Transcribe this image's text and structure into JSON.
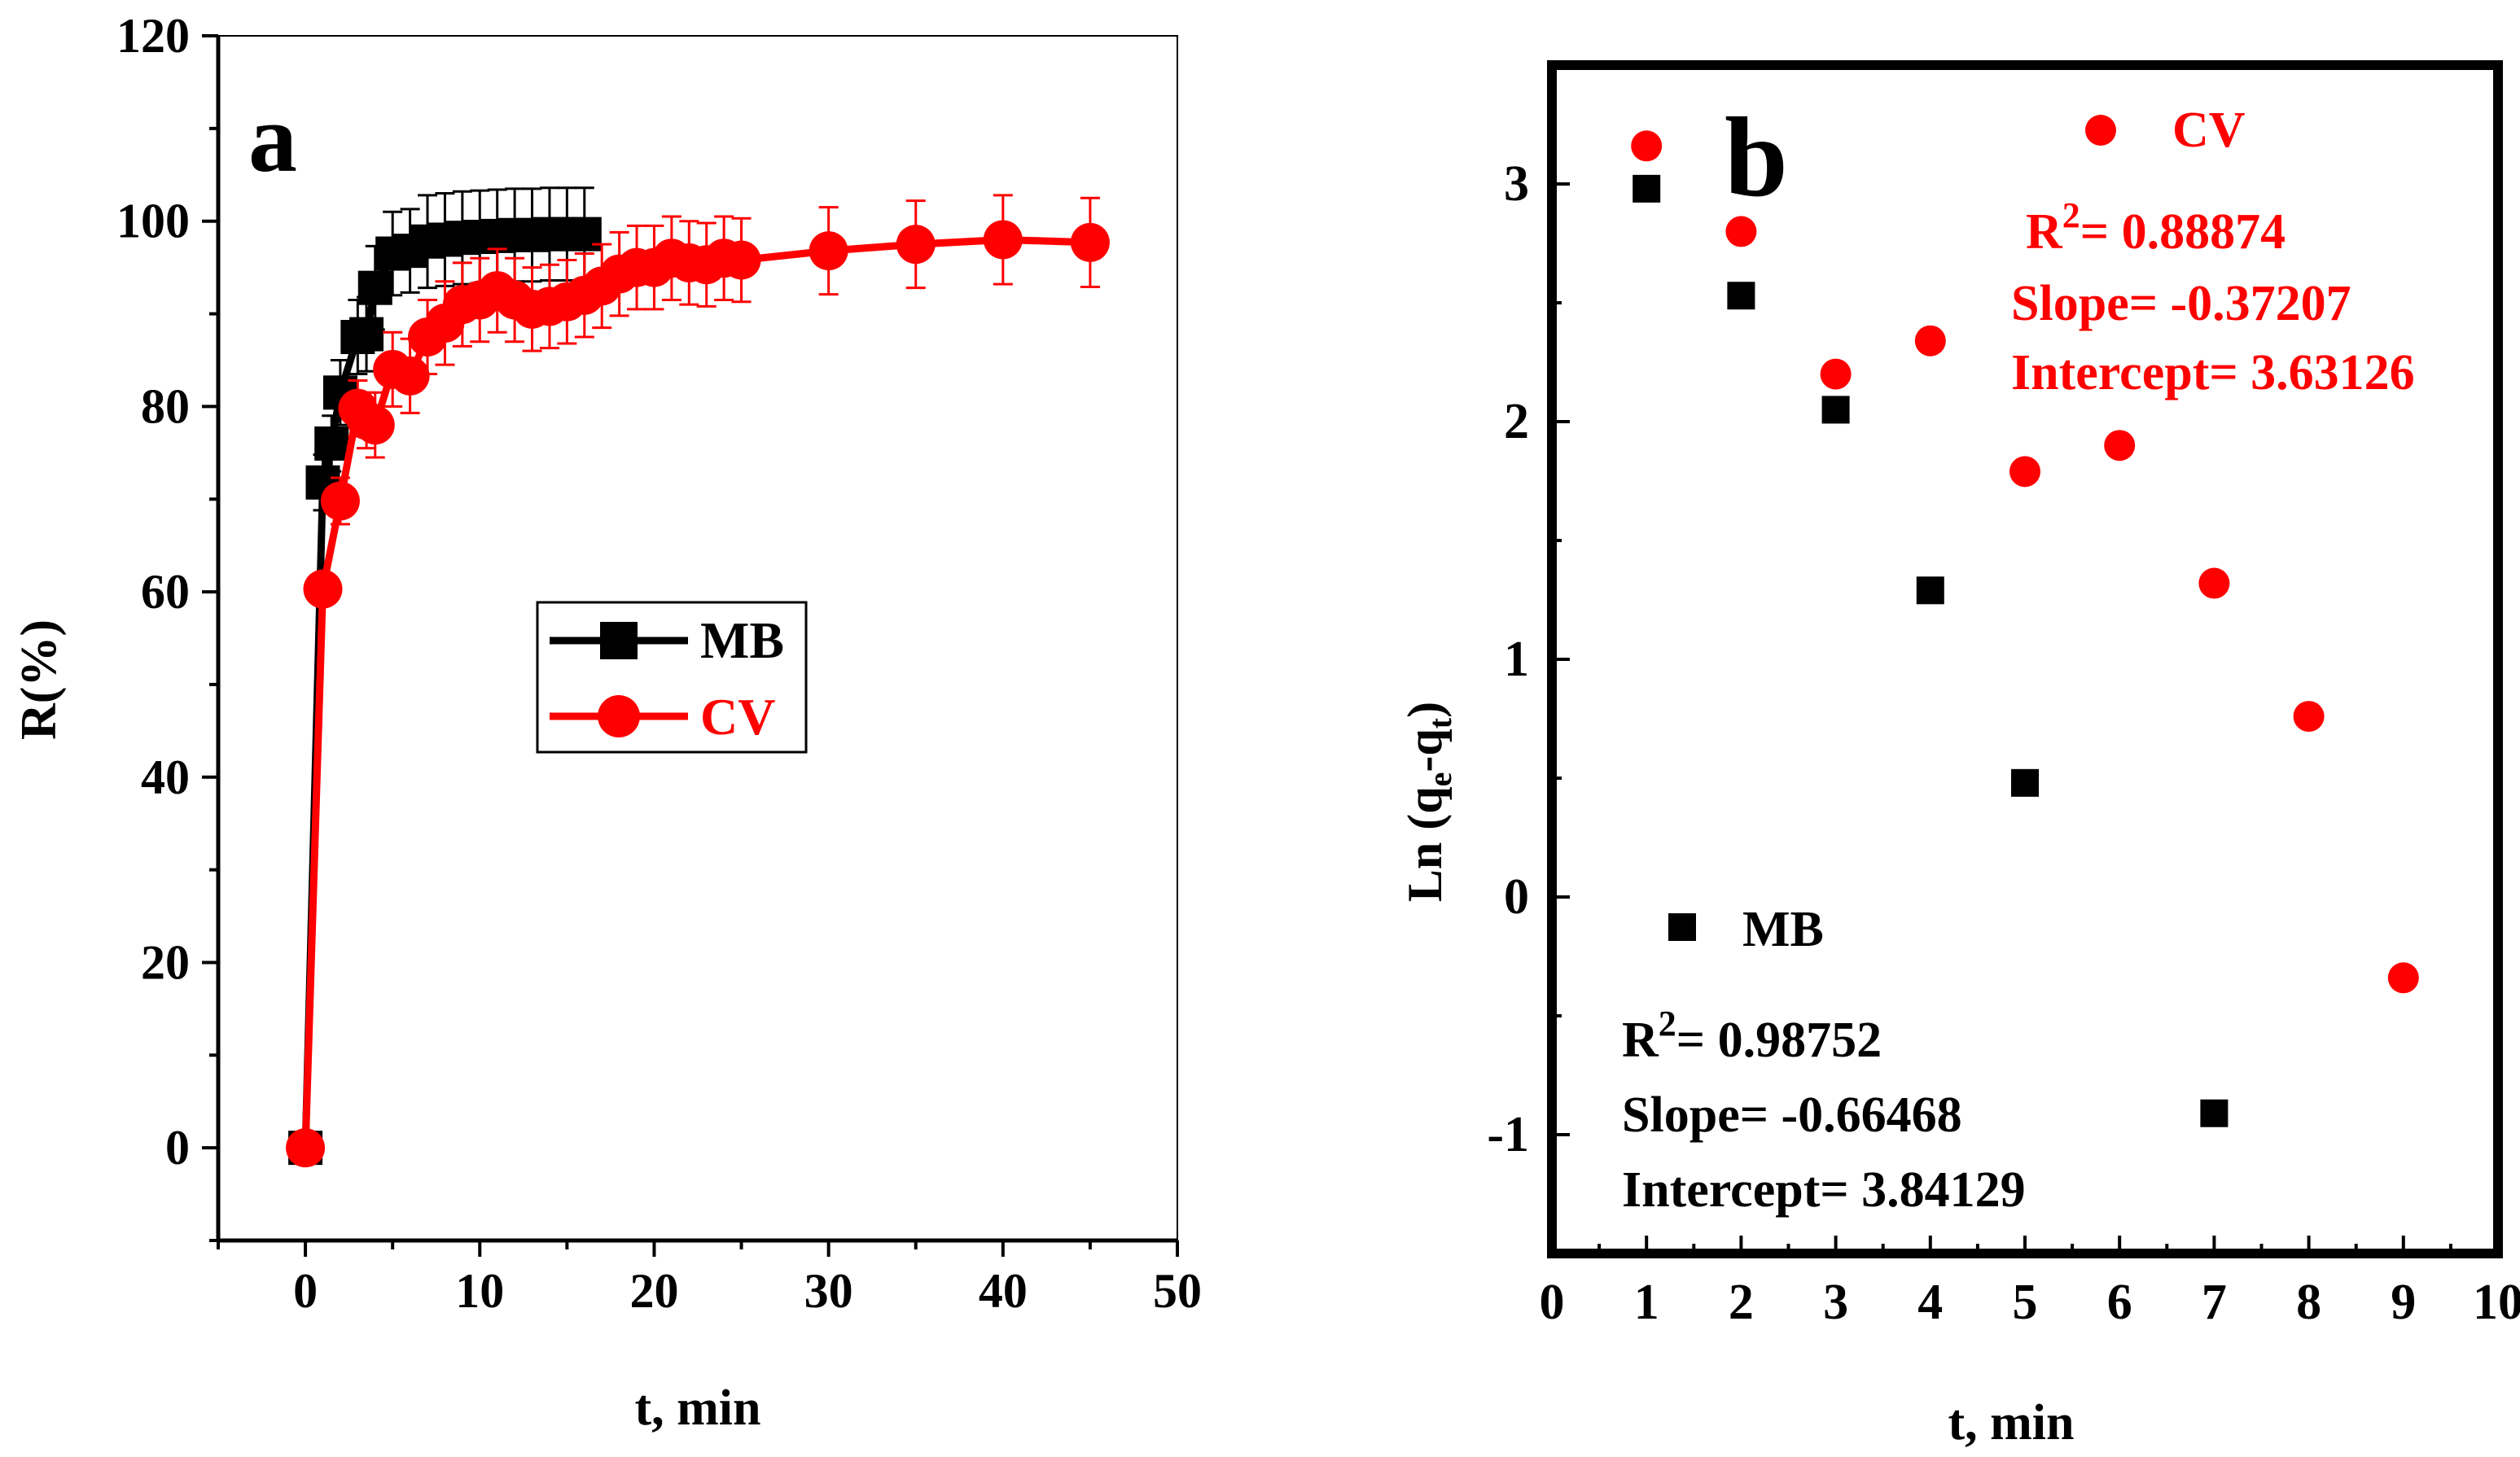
{
  "chart_data": [
    {
      "type": "line",
      "panel_label": "a",
      "xlabel": "t, min",
      "ylabel": "R(%)",
      "xlim": [
        -5,
        50
      ],
      "ylim": [
        -10,
        120
      ],
      "x_ticks": [
        "0",
        "10",
        "20",
        "30",
        "40",
        "50"
      ],
      "y_ticks": [
        "0",
        "20",
        "40",
        "60",
        "80",
        "100",
        "120"
      ],
      "legend_position": "center",
      "series": [
        {
          "name": "MB",
          "color": "#000000",
          "marker": "square",
          "x": [
            0,
            1,
            1.5,
            2,
            3,
            3.5,
            4,
            5,
            6,
            7,
            8,
            9,
            10,
            11,
            12,
            13,
            14,
            15,
            16
          ],
          "y": [
            0,
            71.8,
            76,
            81.5,
            87.5,
            87.8,
            92.8,
            96.5,
            96.8,
            97.8,
            98.0,
            98.2,
            98.3,
            98.4,
            98.5,
            98.5,
            98.6,
            98.6,
            98.6
          ],
          "error": [
            0,
            3.0,
            3.0,
            3.5,
            4.0,
            4.0,
            4.5,
            4.5,
            4.5,
            5.0,
            5.0,
            5.0,
            5.0,
            5.0,
            5.0,
            5.0,
            5.0,
            5.0,
            5.0
          ]
        },
        {
          "name": "CV",
          "color": "#ff0000",
          "marker": "circle",
          "x": [
            0,
            1,
            2,
            3,
            3.5,
            4,
            5,
            6,
            7,
            8,
            9,
            10,
            11,
            12,
            13,
            14,
            15,
            16,
            17,
            18,
            19,
            20,
            21,
            22,
            23,
            24,
            25,
            30,
            35,
            40,
            45
          ],
          "y": [
            0,
            60.3,
            69.8,
            79.8,
            78.5,
            78.0,
            84.0,
            83.3,
            87.5,
            89.0,
            91.0,
            91.5,
            92.5,
            91.5,
            90.5,
            90.8,
            91.3,
            92.0,
            93.0,
            94.3,
            95.0,
            95.0,
            96.0,
            95.5,
            95.3,
            96.0,
            95.8,
            96.8,
            97.5,
            98.0,
            97.7
          ],
          "error": [
            0,
            0,
            2.5,
            3.0,
            3.0,
            3.5,
            4.0,
            4.0,
            4.0,
            4.5,
            4.5,
            4.5,
            4.5,
            4.5,
            4.5,
            4.5,
            4.5,
            4.5,
            4.5,
            4.5,
            4.5,
            4.5,
            4.5,
            4.5,
            4.5,
            4.5,
            4.5,
            4.7,
            4.7,
            4.8,
            4.8
          ]
        }
      ]
    },
    {
      "type": "scatter",
      "panel_label": "b",
      "xlabel": "t, min",
      "ylabel_main": "Ln (q",
      "ylabel_sub1": "e",
      "ylabel_mid": "-q",
      "ylabel_sub2": "t",
      "ylabel_end": ")",
      "xlim": [
        0,
        10
      ],
      "ylim": [
        -1.5,
        3.5
      ],
      "x_ticks": [
        "0",
        "1",
        "2",
        "3",
        "4",
        "5",
        "6",
        "7",
        "8",
        "9",
        "10"
      ],
      "y_ticks": [
        "-1",
        "0",
        "1",
        "2",
        "3"
      ],
      "series": [
        {
          "name": "MB",
          "color": "#000000",
          "marker": "square",
          "x": [
            1,
            2,
            3,
            4,
            5,
            7
          ],
          "y": [
            2.98,
            2.53,
            2.05,
            1.29,
            0.48,
            -0.91
          ]
        },
        {
          "name": "CV",
          "color": "#ff0000",
          "marker": "circle",
          "x": [
            1,
            2,
            3,
            4,
            5,
            6,
            7,
            8,
            9
          ],
          "y": [
            3.16,
            2.8,
            2.2,
            2.34,
            1.79,
            1.9,
            1.32,
            0.76,
            -0.34
          ]
        }
      ],
      "annotations": {
        "cv": {
          "legend": "CV",
          "r2_label": "R",
          "r2_sup": "2",
          "r2_value": "= 0.88874",
          "slope": "Slope= -0.37207",
          "intercept": "Intercept= 3.63126"
        },
        "mb": {
          "legend": "MB",
          "r2_label": "R",
          "r2_sup": "2",
          "r2_value": "= 0.98752",
          "slope": "Slope= -0.66468",
          "intercept": "Intercept= 3.84129"
        }
      }
    }
  ]
}
